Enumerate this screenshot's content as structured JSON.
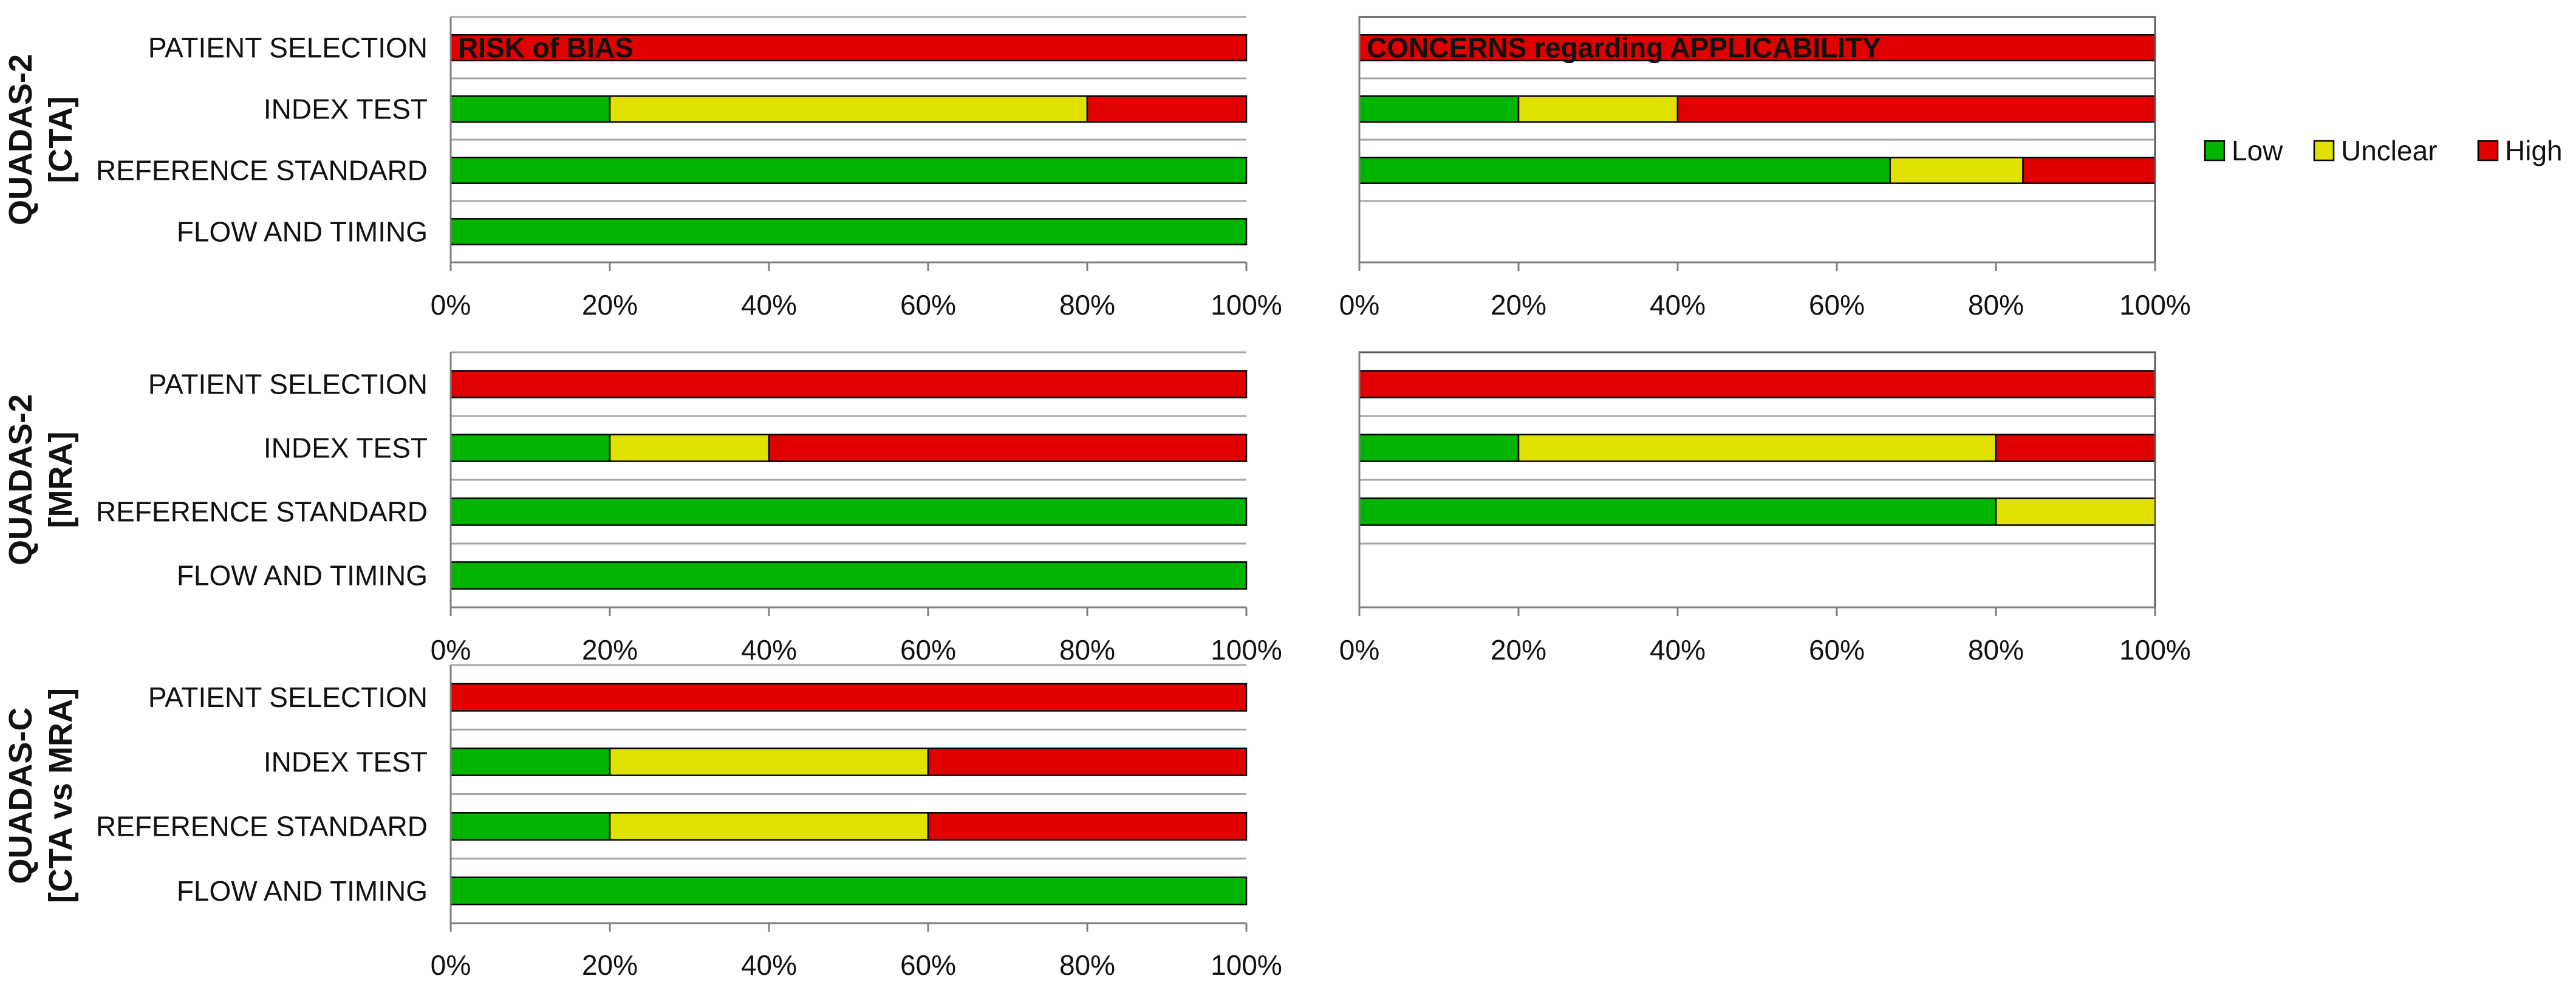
{
  "legend": {
    "items": [
      {
        "key": "low",
        "label": "Low",
        "color": "#00b400"
      },
      {
        "key": "unclear",
        "label": "Unclear",
        "color": "#e1e100"
      },
      {
        "key": "high",
        "label": "High",
        "color": "#e00000"
      }
    ]
  },
  "chart_data": [
    {
      "type": "bar",
      "orientation": "horizontal",
      "stacked": true,
      "group_label": [
        "QUADAS-2",
        "[CTA]"
      ],
      "title": "RISK of BIAS",
      "categories": [
        "PATIENT SELECTION",
        "INDEX TEST",
        "REFERENCE STANDARD",
        "FLOW AND TIMING"
      ],
      "series": [
        {
          "name": "Low",
          "values": [
            0,
            20,
            100,
            100
          ]
        },
        {
          "name": "Unclear",
          "values": [
            0,
            60,
            0,
            0
          ]
        },
        {
          "name": "High",
          "values": [
            100,
            20,
            0,
            0
          ]
        }
      ],
      "xlim": [
        0,
        100
      ],
      "xticks": [
        "0%",
        "20%",
        "40%",
        "60%",
        "80%",
        "100%"
      ]
    },
    {
      "type": "bar",
      "orientation": "horizontal",
      "stacked": true,
      "title": "CONCERNS regarding APPLICABILITY",
      "categories": [
        "PATIENT SELECTION",
        "INDEX TEST",
        "REFERENCE STANDARD",
        "FLOW AND TIMING"
      ],
      "series": [
        {
          "name": "Low",
          "values": [
            0,
            20,
            66.7,
            0
          ]
        },
        {
          "name": "Unclear",
          "values": [
            0,
            20,
            16.7,
            0
          ]
        },
        {
          "name": "High",
          "values": [
            100,
            60,
            16.6,
            0
          ]
        }
      ],
      "xlim": [
        0,
        100
      ],
      "xticks": [
        "0%",
        "20%",
        "40%",
        "60%",
        "80%",
        "100%"
      ]
    },
    {
      "type": "bar",
      "orientation": "horizontal",
      "stacked": true,
      "group_label": [
        "QUADAS-2",
        "[MRA]"
      ],
      "title": "",
      "categories": [
        "PATIENT SELECTION",
        "INDEX TEST",
        "REFERENCE STANDARD",
        "FLOW AND TIMING"
      ],
      "series": [
        {
          "name": "Low",
          "values": [
            0,
            20,
            100,
            100
          ]
        },
        {
          "name": "Unclear",
          "values": [
            0,
            20,
            0,
            0
          ]
        },
        {
          "name": "High",
          "values": [
            100,
            60,
            0,
            0
          ]
        }
      ],
      "xlim": [
        0,
        100
      ],
      "xticks": [
        "0%",
        "20%",
        "40%",
        "60%",
        "80%",
        "100%"
      ]
    },
    {
      "type": "bar",
      "orientation": "horizontal",
      "stacked": true,
      "title": "",
      "categories": [
        "PATIENT SELECTION",
        "INDEX TEST",
        "REFERENCE STANDARD",
        "FLOW AND TIMING"
      ],
      "series": [
        {
          "name": "Low",
          "values": [
            0,
            20,
            80,
            0
          ]
        },
        {
          "name": "Unclear",
          "values": [
            0,
            60,
            20,
            0
          ]
        },
        {
          "name": "High",
          "values": [
            100,
            20,
            0,
            0
          ]
        }
      ],
      "xlim": [
        0,
        100
      ],
      "xticks": [
        "0%",
        "20%",
        "40%",
        "60%",
        "80%",
        "100%"
      ]
    },
    {
      "type": "bar",
      "orientation": "horizontal",
      "stacked": true,
      "group_label": [
        "QUADAS-C",
        "[CTA vs MRA]"
      ],
      "title": "",
      "categories": [
        "PATIENT SELECTION",
        "INDEX TEST",
        "REFERENCE STANDARD",
        "FLOW AND TIMING"
      ],
      "series": [
        {
          "name": "Low",
          "values": [
            0,
            20,
            20,
            100
          ]
        },
        {
          "name": "Unclear",
          "values": [
            0,
            40,
            40,
            0
          ]
        },
        {
          "name": "High",
          "values": [
            100,
            40,
            40,
            0
          ]
        }
      ],
      "xlim": [
        0,
        100
      ],
      "xticks": [
        "0%",
        "20%",
        "40%",
        "60%",
        "80%",
        "100%"
      ]
    }
  ]
}
